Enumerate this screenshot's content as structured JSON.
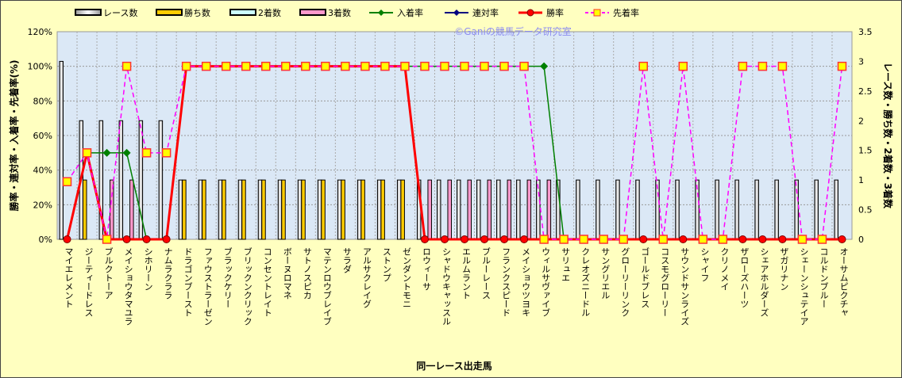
{
  "chart_data": {
    "type": "bar+line",
    "watermark": "©Ganiの競馬データ研究室",
    "xlabel": "同一レース出走馬",
    "ylabel_left": "勝率・連対率・入着率・先着率(%)",
    "ylabel_right": "レース数・勝ち数・2着数・3着数",
    "ylim_left": [
      0,
      120
    ],
    "ylim_right": [
      0,
      3.5
    ],
    "left_ticks": [
      "0%",
      "20%",
      "40%",
      "60%",
      "80%",
      "100%",
      "120%"
    ],
    "right_ticks": [
      "0",
      "0.5",
      "1",
      "1.5",
      "2",
      "2.5",
      "3",
      "3.5"
    ],
    "grid": true,
    "legend_position": "top",
    "categories": [
      "マイエレメント",
      "ジーティードレス",
      "ブルクトーア",
      "メイショウタマユラ",
      "シホリーン",
      "ナムラクララ",
      "ドラゴンブースト",
      "ファウストラーゼン",
      "ブラックケリー",
      "ブリックンクリック",
      "コンセントレイト",
      "ボーヌロマネ",
      "サトノスピカ",
      "マテンロウブレイブ",
      "サラダ",
      "アルサクレイグ",
      "ストンプ",
      "ゼンダントモニ",
      "ロウィーサ",
      "シャドウキャッスル",
      "エルムラント",
      "ブルーレース",
      "フランクスピード",
      "メイショウツヨキ",
      "ウィルサヴァイブ",
      "サリュエ",
      "クレオズニードル",
      "サングリエル",
      "グローリーリンク",
      "ゴールドブレス",
      "コスモグローリー",
      "サウンドサンライズ",
      "シャイフ",
      "クリノメイ",
      "ザローズハーツ",
      "シェアホルダーズ",
      "ザガリナン",
      "シェーンシュテイア",
      "コルドンブルー",
      "オーサムピクチャ"
    ],
    "bar_series": [
      {
        "name": "レース数",
        "color": "#ffffff",
        "values": [
          3,
          2,
          2,
          2,
          2,
          2,
          1,
          1,
          1,
          1,
          1,
          1,
          1,
          1,
          1,
          1,
          1,
          1,
          1,
          1,
          1,
          1,
          1,
          1,
          1,
          1,
          1,
          1,
          1,
          1,
          1,
          1,
          1,
          1,
          1,
          1,
          1,
          1,
          1,
          1
        ]
      },
      {
        "name": "勝ち数",
        "color": "#ffcc00",
        "values": [
          0,
          1,
          0,
          0,
          0,
          0,
          1,
          1,
          1,
          1,
          1,
          1,
          1,
          1,
          1,
          1,
          1,
          1,
          0,
          0,
          0,
          0,
          0,
          0,
          0,
          0,
          0,
          0,
          0,
          0,
          0,
          0,
          0,
          0,
          0,
          0,
          0,
          0,
          0,
          0
        ]
      },
      {
        "name": "2着数",
        "color": "#ccffff",
        "values": [
          0,
          0,
          0,
          0,
          0,
          0,
          0,
          0,
          0,
          0,
          0,
          0,
          0,
          0,
          0,
          0,
          0,
          0,
          0,
          0,
          0,
          0,
          0,
          0,
          0,
          0,
          0,
          0,
          0,
          0,
          0,
          0,
          0,
          0,
          0,
          0,
          0,
          0,
          0,
          0
        ]
      },
      {
        "name": "3着数",
        "color": "#ff99cc",
        "values": [
          0,
          0,
          1,
          1,
          0,
          0,
          0,
          0,
          0,
          0,
          0,
          0,
          0,
          0,
          0,
          0,
          0,
          0,
          1,
          1,
          1,
          1,
          1,
          1,
          1,
          0,
          0,
          0,
          0,
          0,
          0,
          0,
          0,
          0,
          0,
          0,
          0,
          0,
          0,
          0
        ]
      }
    ],
    "line_series": [
      {
        "name": "入着率",
        "color": "#008000",
        "marker": "diamond",
        "values": [
          0,
          50,
          50,
          50,
          0,
          0,
          100,
          100,
          100,
          100,
          100,
          100,
          100,
          100,
          100,
          100,
          100,
          100,
          100,
          100,
          100,
          100,
          100,
          100,
          100,
          0,
          0,
          0,
          0,
          0,
          0,
          0,
          0,
          0,
          0,
          0,
          0,
          0,
          0,
          0
        ]
      },
      {
        "name": "連対率",
        "color": "#000080",
        "marker": "diamond",
        "values": [
          0,
          50,
          0,
          0,
          0,
          0,
          100,
          100,
          100,
          100,
          100,
          100,
          100,
          100,
          100,
          100,
          100,
          100,
          0,
          0,
          0,
          0,
          0,
          0,
          0,
          0,
          0,
          0,
          0,
          0,
          0,
          0,
          0,
          0,
          0,
          0,
          0,
          0,
          0,
          0
        ]
      },
      {
        "name": "勝率",
        "color": "#ff0000",
        "marker": "circle",
        "values": [
          0,
          50,
          0,
          0,
          0,
          0,
          100,
          100,
          100,
          100,
          100,
          100,
          100,
          100,
          100,
          100,
          100,
          100,
          0,
          0,
          0,
          0,
          0,
          0,
          0,
          0,
          0,
          0,
          0,
          0,
          0,
          0,
          0,
          0,
          0,
          0,
          0,
          0,
          0,
          0
        ]
      },
      {
        "name": "先着率",
        "color": "#ff00ff",
        "marker": "square",
        "dashed": true,
        "values": [
          33.3,
          50,
          0,
          100,
          50,
          50,
          100,
          100,
          100,
          100,
          100,
          100,
          100,
          100,
          100,
          100,
          100,
          100,
          100,
          100,
          100,
          100,
          100,
          100,
          0,
          0,
          0,
          0,
          0,
          100,
          0,
          100,
          0,
          0,
          100,
          100,
          100,
          0,
          0,
          100
        ]
      }
    ]
  }
}
